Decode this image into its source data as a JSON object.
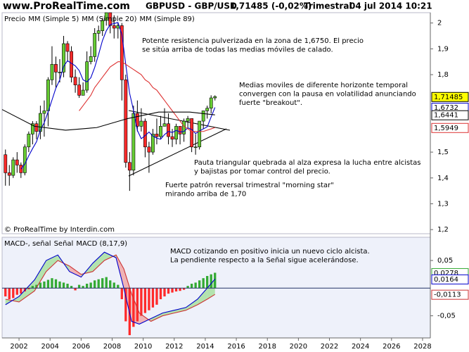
{
  "header": {
    "site": "www.ProRealTime.com",
    "symbol": "GBPUSD - GBP/USD",
    "quote": "1,71485 (-0,02%)",
    "period": "Trimestral",
    "datetime": "04 jul 2014 10:21"
  },
  "chart_data": [
    {
      "type": "candlestick",
      "xlim": [
        2000.91,
        2028.5
      ],
      "ylim": [
        1.184,
        2.04
      ],
      "yticks": [
        2,
        {
          "value": 1.9,
          "label": "1,9"
        },
        {
          "value": 1.8,
          "label": "1,8"
        },
        {
          "value": 1.5,
          "label": "1,5"
        },
        {
          "value": 1.4,
          "label": "1,4"
        },
        {
          "value": 1.3,
          "label": "1,3"
        },
        {
          "value": 1.2,
          "label": "1,2"
        }
      ],
      "x": [
        2001.125,
        2001.375,
        2001.625,
        2001.875,
        2002.125,
        2002.375,
        2002.625,
        2002.875,
        2003.125,
        2003.375,
        2003.625,
        2003.875,
        2004.125,
        2004.375,
        2004.625,
        2004.875,
        2005.125,
        2005.375,
        2005.625,
        2005.875,
        2006.125,
        2006.375,
        2006.625,
        2006.875,
        2007.125,
        2007.375,
        2007.625,
        2007.875,
        2008.125,
        2008.375,
        2008.625,
        2008.875,
        2009.125,
        2009.375,
        2009.625,
        2009.875,
        2010.125,
        2010.375,
        2010.625,
        2010.875,
        2011.125,
        2011.375,
        2011.625,
        2011.875,
        2012.125,
        2012.375,
        2012.625,
        2012.875,
        2013.125,
        2013.375,
        2013.625,
        2013.875,
        2014.125,
        2014.375,
        2014.625
      ],
      "series": [
        {
          "name": "Precio",
          "type": "candlestick",
          "color": "#000000",
          "up_color": "#66cc33",
          "down_color": "#ff2a2a",
          "label_fill": "#ffff00",
          "open": [
            1.49,
            1.42,
            1.41,
            1.47,
            1.45,
            1.42,
            1.52,
            1.57,
            1.61,
            1.58,
            1.65,
            1.66,
            1.78,
            1.84,
            1.81,
            1.81,
            1.92,
            1.89,
            1.79,
            1.76,
            1.72,
            1.74,
            1.85,
            1.87,
            1.96,
            1.97,
            2.01,
            2.04,
            1.99,
            1.98,
            1.99,
            1.78,
            1.46,
            1.43,
            1.65,
            1.6,
            1.62,
            1.52,
            1.5,
            1.57,
            1.56,
            1.6,
            1.61,
            1.56,
            1.55,
            1.6,
            1.57,
            1.62,
            1.63,
            1.52,
            1.52,
            1.62,
            1.66,
            1.67,
            1.71
          ],
          "high": [
            1.51,
            1.45,
            1.48,
            1.5,
            1.46,
            1.53,
            1.58,
            1.62,
            1.62,
            1.68,
            1.7,
            1.79,
            1.91,
            1.87,
            1.86,
            1.95,
            1.93,
            1.91,
            1.82,
            1.79,
            1.77,
            1.89,
            1.91,
            1.98,
            1.99,
            2.02,
            2.04,
            2.04,
            2.03,
            2.0,
            2.0,
            1.8,
            1.5,
            1.68,
            1.7,
            1.67,
            1.63,
            1.54,
            1.59,
            1.63,
            1.64,
            1.67,
            1.65,
            1.59,
            1.61,
            1.6,
            1.63,
            1.64,
            1.63,
            1.57,
            1.62,
            1.66,
            1.68,
            1.72,
            1.72
          ],
          "low": [
            1.37,
            1.37,
            1.4,
            1.42,
            1.4,
            1.41,
            1.5,
            1.53,
            1.55,
            1.55,
            1.56,
            1.6,
            1.76,
            1.75,
            1.77,
            1.79,
            1.85,
            1.77,
            1.73,
            1.71,
            1.72,
            1.73,
            1.84,
            1.85,
            1.93,
            1.95,
            1.99,
            1.96,
            1.94,
            1.94,
            1.7,
            1.44,
            1.35,
            1.41,
            1.58,
            1.58,
            1.48,
            1.42,
            1.49,
            1.53,
            1.55,
            1.6,
            1.53,
            1.52,
            1.53,
            1.53,
            1.54,
            1.59,
            1.5,
            1.49,
            1.51,
            1.59,
            1.63,
            1.65,
            1.7
          ],
          "values": [
            1.42,
            1.41,
            1.47,
            1.45,
            1.42,
            1.52,
            1.57,
            1.61,
            1.58,
            1.65,
            1.66,
            1.78,
            1.84,
            1.81,
            1.81,
            1.92,
            1.89,
            1.79,
            1.76,
            1.72,
            1.74,
            1.85,
            1.87,
            1.96,
            1.97,
            2.01,
            2.04,
            1.99,
            1.98,
            1.99,
            1.78,
            1.46,
            1.43,
            1.65,
            1.6,
            1.62,
            1.52,
            1.5,
            1.57,
            1.56,
            1.6,
            1.61,
            1.56,
            1.55,
            1.6,
            1.57,
            1.62,
            1.63,
            1.52,
            1.52,
            1.62,
            1.66,
            1.67,
            1.71,
            1.71485
          ],
          "value_labels": [
            null,
            null,
            null,
            null,
            null,
            null,
            null,
            null,
            null,
            null,
            null,
            null,
            null,
            null,
            null,
            null,
            null,
            null,
            null,
            null,
            null,
            null,
            null,
            null,
            null,
            null,
            null,
            null,
            null,
            null,
            null,
            null,
            null,
            null,
            null,
            null,
            null,
            null,
            null,
            null,
            null,
            null,
            null,
            null,
            null,
            null,
            null,
            null,
            null,
            null,
            null,
            null,
            null,
            null,
            "1,71485"
          ]
        },
        {
          "name": "MM (Simple 5)",
          "type": "line",
          "color": "#0000cc",
          "values": [
            null,
            null,
            null,
            null,
            1.434,
            1.454,
            1.486,
            1.514,
            1.54,
            1.586,
            1.614,
            1.656,
            1.702,
            1.748,
            1.78,
            1.832,
            1.854,
            1.844,
            1.834,
            1.816,
            1.78,
            1.772,
            1.788,
            1.828,
            1.878,
            1.932,
            1.97,
            1.994,
            1.998,
            2.002,
            1.956,
            1.84,
            1.728,
            1.662,
            1.584,
            1.552,
            1.564,
            1.578,
            1.562,
            1.554,
            1.55,
            1.568,
            1.58,
            1.576,
            1.584,
            1.578,
            1.58,
            1.594,
            1.588,
            1.572,
            1.582,
            1.59,
            1.598,
            1.636,
            1.6732
          ],
          "value_labels": [
            null,
            null,
            null,
            null,
            null,
            null,
            null,
            null,
            null,
            null,
            null,
            null,
            null,
            null,
            null,
            null,
            null,
            null,
            null,
            null,
            null,
            null,
            null,
            null,
            null,
            null,
            null,
            null,
            null,
            null,
            null,
            null,
            null,
            null,
            null,
            null,
            null,
            null,
            null,
            null,
            null,
            null,
            null,
            null,
            null,
            null,
            null,
            null,
            null,
            null,
            null,
            null,
            null,
            null,
            "1,6732"
          ]
        },
        {
          "name": "MM (Simple 20)",
          "type": "line",
          "color": "#dd3333",
          "values": [
            null,
            null,
            null,
            null,
            null,
            null,
            null,
            null,
            null,
            null,
            null,
            null,
            null,
            null,
            null,
            null,
            null,
            null,
            null,
            1.66,
            1.68,
            1.7,
            1.72,
            1.75,
            1.77,
            1.79,
            1.81,
            1.83,
            1.84,
            1.85,
            1.85,
            1.84,
            1.83,
            1.82,
            1.81,
            1.8,
            1.78,
            1.77,
            1.75,
            1.74,
            1.72,
            1.7,
            1.68,
            1.66,
            1.64,
            1.62,
            1.6,
            1.59,
            1.58,
            1.58,
            1.58,
            1.58,
            1.585,
            1.59,
            1.5949
          ],
          "value_labels": [
            null,
            null,
            null,
            null,
            null,
            null,
            null,
            null,
            null,
            null,
            null,
            null,
            null,
            null,
            null,
            null,
            null,
            null,
            null,
            null,
            null,
            null,
            null,
            null,
            null,
            null,
            null,
            null,
            null,
            null,
            null,
            null,
            null,
            null,
            null,
            null,
            null,
            null,
            null,
            null,
            null,
            null,
            null,
            null,
            null,
            null,
            null,
            null,
            null,
            null,
            null,
            null,
            null,
            null,
            "1,5949"
          ]
        },
        {
          "name": "MM (Simple 89)",
          "type": "line",
          "color": "#000000",
          "x": [
            2000.91,
            2003,
            2005,
            2007,
            2009,
            2011,
            2013,
            2014.625
          ],
          "values": [
            1.665,
            1.6,
            1.585,
            1.595,
            1.63,
            1.655,
            1.655,
            1.6441
          ],
          "value_labels": [
            null,
            null,
            null,
            null,
            null,
            null,
            null,
            "1,6441"
          ]
        }
      ],
      "annotations": [
        [
          "Potente resistencia pulverizada en la zona de 1,6750. El precio",
          "se sitúa arriba de todas las medias móviles de calado."
        ],
        [
          "Medias moviles de diferente horizonte temporal",
          "convergen con la pausa en volatilidad anunciando",
          "fuerte \"breakout\"."
        ],
        [
          "Pauta triangular quebrada al alza expresa la lucha entre alcistas",
          "y bajistas por tomar control del precio."
        ],
        [
          "Fuerte patrón reversal trimestral \"morning star\"",
          "mirando arriba de 1,70"
        ]
      ],
      "footnote": "© ProRealTime by Interdin.com"
    },
    {
      "type": "bar",
      "xlim": [
        2000.91,
        2028.5
      ],
      "ylim": [
        -0.09,
        0.092
      ],
      "yticks": [
        {
          "value": 0.05,
          "label": "0,05"
        },
        {
          "value": -0.05,
          "label": "-0,05"
        }
      ],
      "xticks": [
        2002,
        2004,
        2006,
        2008,
        2010,
        2012,
        2014,
        2016,
        2018,
        2020,
        2022,
        2024,
        2026,
        2028
      ],
      "x": [
        2001.125,
        2001.375,
        2001.625,
        2001.875,
        2002.125,
        2002.375,
        2002.625,
        2002.875,
        2003.125,
        2003.375,
        2003.625,
        2003.875,
        2004.125,
        2004.375,
        2004.625,
        2004.875,
        2005.125,
        2005.375,
        2005.625,
        2005.875,
        2006.125,
        2006.375,
        2006.625,
        2006.875,
        2007.125,
        2007.375,
        2007.625,
        2007.875,
        2008.125,
        2008.375,
        2008.625,
        2008.875,
        2009.125,
        2009.375,
        2009.625,
        2009.875,
        2010.125,
        2010.375,
        2010.625,
        2010.875,
        2011.125,
        2011.375,
        2011.625,
        2011.875,
        2012.125,
        2012.375,
        2012.625,
        2012.875,
        2013.125,
        2013.375,
        2013.625,
        2013.875,
        2014.125,
        2014.375,
        2014.625
      ],
      "band_fill": [
        "#a8e0a0",
        "#f0a8a8"
      ],
      "series": [
        {
          "name": "MACD-, señal",
          "type": "bar",
          "color": "#33aa33",
          "negative_color": "#ff2a2a",
          "values": [
            -0.015,
            -0.02,
            -0.018,
            -0.012,
            -0.01,
            -0.006,
            -0.002,
            0.004,
            0.006,
            0.01,
            0.012,
            0.015,
            0.018,
            0.016,
            0.012,
            0.01,
            0.008,
            0.004,
            -0.004,
            0.006,
            0.004,
            0.008,
            0.01,
            0.014,
            0.016,
            0.018,
            0.02,
            0.014,
            0.01,
            0.006,
            -0.02,
            -0.06,
            -0.085,
            -0.07,
            -0.06,
            -0.05,
            -0.045,
            -0.04,
            -0.035,
            -0.03,
            -0.02,
            -0.015,
            -0.01,
            -0.008,
            -0.006,
            -0.005,
            -0.003,
            0.004,
            0.008,
            0.01,
            0.014,
            0.018,
            0.022,
            0.025,
            0.0278
          ],
          "value_labels": [
            null,
            null,
            null,
            null,
            null,
            null,
            null,
            null,
            null,
            null,
            null,
            null,
            null,
            null,
            null,
            null,
            null,
            null,
            null,
            null,
            null,
            null,
            null,
            null,
            null,
            null,
            null,
            null,
            null,
            null,
            null,
            null,
            null,
            null,
            null,
            null,
            null,
            null,
            null,
            null,
            null,
            null,
            null,
            null,
            null,
            null,
            null,
            null,
            null,
            null,
            null,
            null,
            null,
            null,
            "0,0278"
          ]
        },
        {
          "name": "Señal",
          "type": "line",
          "color": "#cc3333",
          "x": [
            2001.125,
            2002,
            2003,
            2003.75,
            2004.5,
            2005.25,
            2006,
            2006.75,
            2007.5,
            2008.25,
            2008.75,
            2009.25,
            2009.75,
            2010.5,
            2011.25,
            2012,
            2012.75,
            2013.5,
            2014.125,
            2014.625
          ],
          "values": [
            -0.02,
            -0.025,
            -0.005,
            0.03,
            0.05,
            0.04,
            0.025,
            0.03,
            0.05,
            0.06,
            0.035,
            -0.01,
            -0.045,
            -0.06,
            -0.05,
            -0.045,
            -0.04,
            -0.03,
            -0.02,
            -0.0113
          ],
          "value_labels": [
            null,
            null,
            null,
            null,
            null,
            null,
            null,
            null,
            null,
            null,
            null,
            null,
            null,
            null,
            null,
            null,
            null,
            null,
            null,
            "-0,0113"
          ]
        },
        {
          "name": "MACD (8,17,9)",
          "type": "line",
          "color": "#0000cc",
          "x": [
            2001.125,
            2002,
            2003,
            2003.75,
            2004.5,
            2005.25,
            2006,
            2006.75,
            2007.5,
            2008.25,
            2008.75,
            2009.25,
            2009.75,
            2010.5,
            2011.25,
            2012,
            2012.75,
            2013.5,
            2014.125,
            2014.625
          ],
          "values": [
            -0.03,
            -0.015,
            0.015,
            0.05,
            0.06,
            0.03,
            0.02,
            0.045,
            0.065,
            0.055,
            0.0,
            -0.06,
            -0.065,
            -0.055,
            -0.045,
            -0.04,
            -0.035,
            -0.02,
            0.0,
            0.0164
          ],
          "value_labels": [
            null,
            null,
            null,
            null,
            null,
            null,
            null,
            null,
            null,
            null,
            null,
            null,
            null,
            null,
            null,
            null,
            null,
            null,
            null,
            "0,0164"
          ]
        }
      ],
      "annotations": [
        [
          "MACD cotizando en positivo inicia un nuevo ciclo alcista.",
          "La pendiente respecto a la Señal sigue acelerándose."
        ]
      ]
    }
  ]
}
